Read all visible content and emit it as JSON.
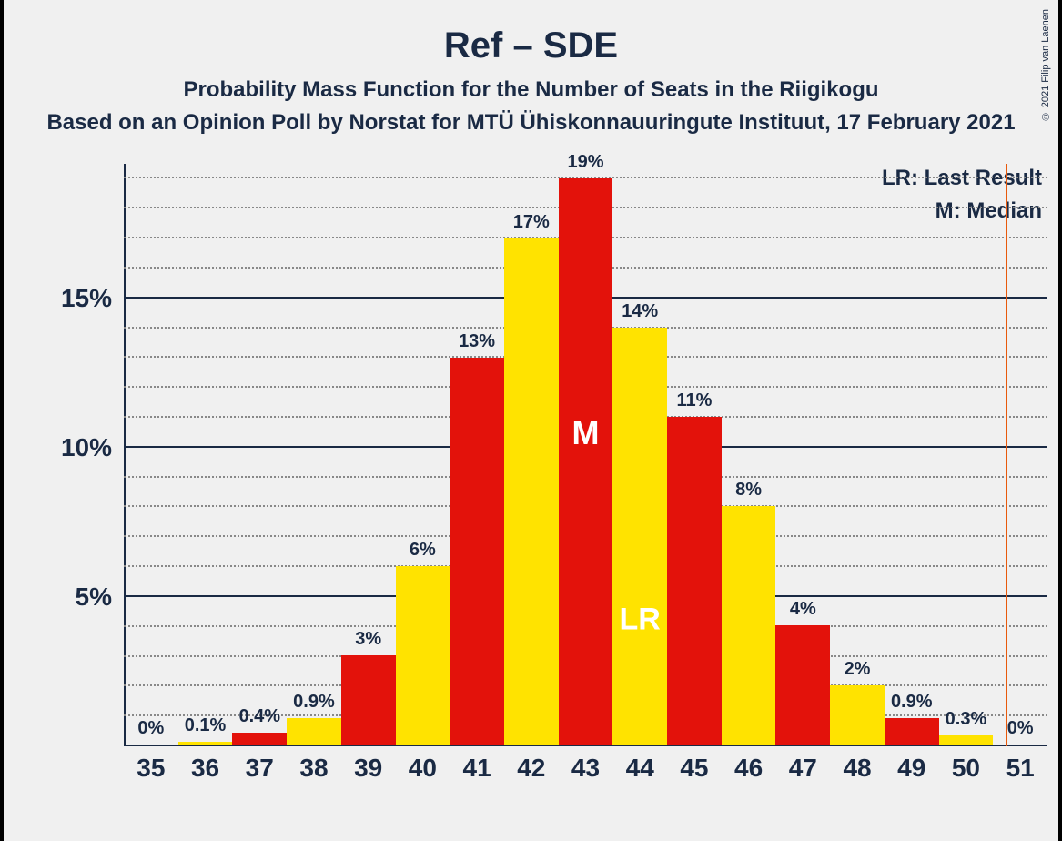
{
  "title": "Ref – SDE",
  "subtitle1": "Probability Mass Function for the Number of Seats in the Riigikogu",
  "subtitle2": "Based on an Opinion Poll by Norstat for MTÜ Ühiskonnauuringute Instituut, 17 February 2021",
  "legend": {
    "lr": "LR: Last Result",
    "m": "M: Median"
  },
  "copyright": "© 2021 Filip van Laenen",
  "chart": {
    "type": "bar",
    "background_color": "#f0f0f0",
    "axis_color": "#1a2a44",
    "grid_minor_color": "#888888",
    "text_color": "#1a2a44",
    "title_fontsize": 40,
    "subtitle_fontsize": 24,
    "axis_label_fontsize": 28,
    "bar_label_fontsize": 20,
    "ylim_max": 19.5,
    "y_major_ticks": [
      5,
      10,
      15
    ],
    "y_minor_step": 1,
    "categories": [
      35,
      36,
      37,
      38,
      39,
      40,
      41,
      42,
      43,
      44,
      45,
      46,
      47,
      48,
      49,
      50,
      51
    ],
    "values": [
      0,
      0.1,
      0.4,
      0.9,
      3,
      6,
      13,
      17,
      19,
      14,
      11,
      8,
      4,
      2,
      0.9,
      0.3,
      0
    ],
    "value_labels": [
      "0%",
      "0.1%",
      "0.4%",
      "0.9%",
      "3%",
      "6%",
      "13%",
      "17%",
      "19%",
      "14%",
      "11%",
      "8%",
      "4%",
      "2%",
      "0.9%",
      "0.3%",
      "0%"
    ],
    "bar_colors": [
      "#e3120b",
      "#ffe300",
      "#e3120b",
      "#ffe300",
      "#e3120b",
      "#ffe300",
      "#e3120b",
      "#ffe300",
      "#e3120b",
      "#ffe300",
      "#e3120b",
      "#ffe300",
      "#e3120b",
      "#ffe300",
      "#e3120b",
      "#ffe300",
      "#e3120b"
    ],
    "bar_width_ratio": 1.0,
    "median_index": 8,
    "median_label": "M",
    "lr_index": 9,
    "lr_label": "LR",
    "lr_vertical_line_x_ratio": 0.955,
    "lr_line_color": "#e8590c"
  }
}
